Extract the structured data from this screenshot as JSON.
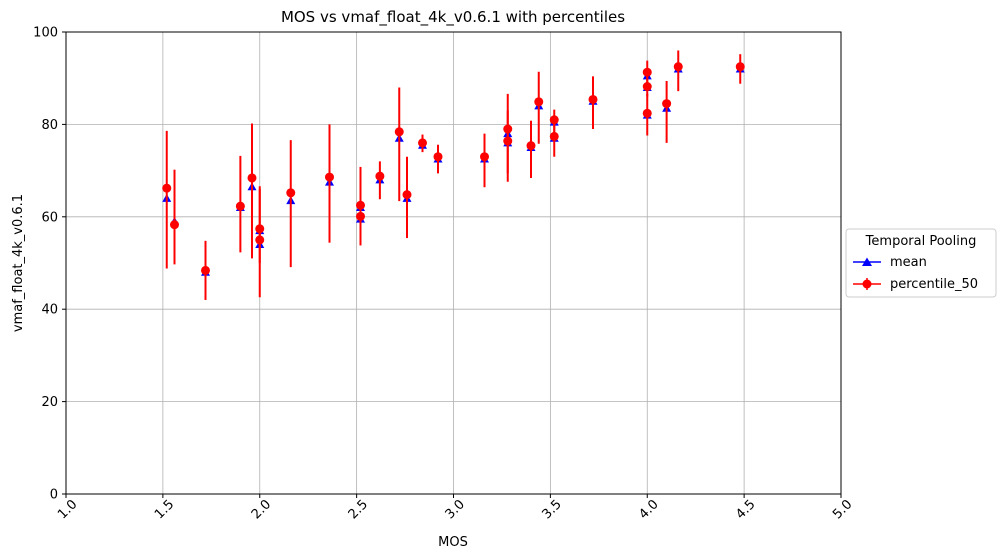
{
  "chart_data": {
    "type": "scatter",
    "title": "MOS vs vmaf_float_4k_v0.6.1 with percentiles",
    "xlabel": "MOS",
    "ylabel": "vmaf_float_4k_v0.6.1",
    "xlim": [
      1.0,
      5.0
    ],
    "ylim": [
      0,
      100
    ],
    "x_ticks": [
      "1.0",
      "1.5",
      "2.0",
      "2.5",
      "3.0",
      "3.5",
      "4.0",
      "4.5",
      "5.0"
    ],
    "x_tick_values": [
      1.0,
      1.5,
      2.0,
      2.5,
      3.0,
      3.5,
      4.0,
      4.5,
      5.0
    ],
    "y_ticks": [
      "0",
      "20",
      "40",
      "60",
      "80",
      "100"
    ],
    "y_tick_values": [
      0,
      20,
      40,
      60,
      80,
      100
    ],
    "grid": true,
    "legend": {
      "title": "Temporal Pooling",
      "placement": "right-outside",
      "entries": [
        "mean",
        "percentile_50"
      ]
    },
    "series": [
      {
        "name": "mean",
        "color": "#0000ff",
        "marker": "triangle",
        "points": [
          {
            "x": 1.52,
            "y": 64.0
          },
          {
            "x": 1.56,
            "y": 59.0
          },
          {
            "x": 1.72,
            "y": 48.0
          },
          {
            "x": 1.9,
            "y": 62.0
          },
          {
            "x": 1.96,
            "y": 66.5
          },
          {
            "x": 2.0,
            "y": 54.0
          },
          {
            "x": 2.0,
            "y": 57.0
          },
          {
            "x": 2.16,
            "y": 63.5
          },
          {
            "x": 2.36,
            "y": 67.5
          },
          {
            "x": 2.52,
            "y": 59.5
          },
          {
            "x": 2.52,
            "y": 62.0
          },
          {
            "x": 2.62,
            "y": 68.0
          },
          {
            "x": 2.72,
            "y": 77.0
          },
          {
            "x": 2.76,
            "y": 64.0
          },
          {
            "x": 2.84,
            "y": 75.5
          },
          {
            "x": 2.92,
            "y": 72.5
          },
          {
            "x": 3.16,
            "y": 72.5
          },
          {
            "x": 3.28,
            "y": 76.0
          },
          {
            "x": 3.28,
            "y": 78.0
          },
          {
            "x": 3.4,
            "y": 75.0
          },
          {
            "x": 3.44,
            "y": 84.0
          },
          {
            "x": 3.52,
            "y": 77.0
          },
          {
            "x": 3.52,
            "y": 80.5
          },
          {
            "x": 3.72,
            "y": 85.0
          },
          {
            "x": 4.0,
            "y": 82.0
          },
          {
            "x": 4.0,
            "y": 88.0
          },
          {
            "x": 4.0,
            "y": 90.5
          },
          {
            "x": 4.1,
            "y": 83.5
          },
          {
            "x": 4.16,
            "y": 92.0
          },
          {
            "x": 4.48,
            "y": 92.0
          }
        ]
      },
      {
        "name": "percentile_50",
        "color": "#ff0000",
        "marker": "circle",
        "points": [
          {
            "x": 1.52,
            "y": 66.2,
            "lo": 48.8,
            "hi": 78.6
          },
          {
            "x": 1.56,
            "y": 58.3,
            "lo": 49.7,
            "hi": 70.2
          },
          {
            "x": 1.72,
            "y": 48.4,
            "lo": 42.0,
            "hi": 54.8
          },
          {
            "x": 1.9,
            "y": 62.3,
            "lo": 52.3,
            "hi": 73.2
          },
          {
            "x": 1.96,
            "y": 68.4,
            "lo": 51.0,
            "hi": 80.2
          },
          {
            "x": 2.0,
            "y": 55.0,
            "lo": 42.6,
            "hi": 66.6
          },
          {
            "x": 2.0,
            "y": 57.4,
            "lo": 50.0,
            "hi": 66.0
          },
          {
            "x": 2.16,
            "y": 65.2,
            "lo": 49.1,
            "hi": 76.6
          },
          {
            "x": 2.36,
            "y": 68.6,
            "lo": 54.4,
            "hi": 80.0
          },
          {
            "x": 2.52,
            "y": 60.1,
            "lo": 53.8,
            "hi": 70.8
          },
          {
            "x": 2.52,
            "y": 62.5,
            "lo": 56.0,
            "hi": 68.0
          },
          {
            "x": 2.62,
            "y": 68.8,
            "lo": 63.8,
            "hi": 72.0
          },
          {
            "x": 2.72,
            "y": 78.4,
            "lo": 63.4,
            "hi": 88.0
          },
          {
            "x": 2.76,
            "y": 64.8,
            "lo": 55.4,
            "hi": 73.0
          },
          {
            "x": 2.84,
            "y": 76.0,
            "lo": 74.0,
            "hi": 77.8
          },
          {
            "x": 2.92,
            "y": 73.0,
            "lo": 69.4,
            "hi": 75.6
          },
          {
            "x": 3.16,
            "y": 73.0,
            "lo": 66.4,
            "hi": 78.0
          },
          {
            "x": 3.28,
            "y": 76.4,
            "lo": 67.6,
            "hi": 83.0
          },
          {
            "x": 3.28,
            "y": 79.0,
            "lo": 69.4,
            "hi": 86.6
          },
          {
            "x": 3.4,
            "y": 75.4,
            "lo": 68.4,
            "hi": 80.8
          },
          {
            "x": 3.44,
            "y": 84.9,
            "lo": 75.8,
            "hi": 91.4
          },
          {
            "x": 3.52,
            "y": 77.4,
            "lo": 73.0,
            "hi": 81.0
          },
          {
            "x": 3.52,
            "y": 81.0,
            "lo": 78.4,
            "hi": 83.2
          },
          {
            "x": 3.72,
            "y": 85.4,
            "lo": 79.0,
            "hi": 90.4
          },
          {
            "x": 4.0,
            "y": 82.4,
            "lo": 77.6,
            "hi": 86.6
          },
          {
            "x": 4.0,
            "y": 88.2,
            "lo": 86.0,
            "hi": 90.4
          },
          {
            "x": 4.0,
            "y": 91.3,
            "lo": 88.0,
            "hi": 93.8
          },
          {
            "x": 4.1,
            "y": 84.5,
            "lo": 76.0,
            "hi": 89.4
          },
          {
            "x": 4.16,
            "y": 92.5,
            "lo": 87.2,
            "hi": 96.0
          },
          {
            "x": 4.48,
            "y": 92.5,
            "lo": 88.8,
            "hi": 95.2
          }
        ]
      }
    ]
  }
}
